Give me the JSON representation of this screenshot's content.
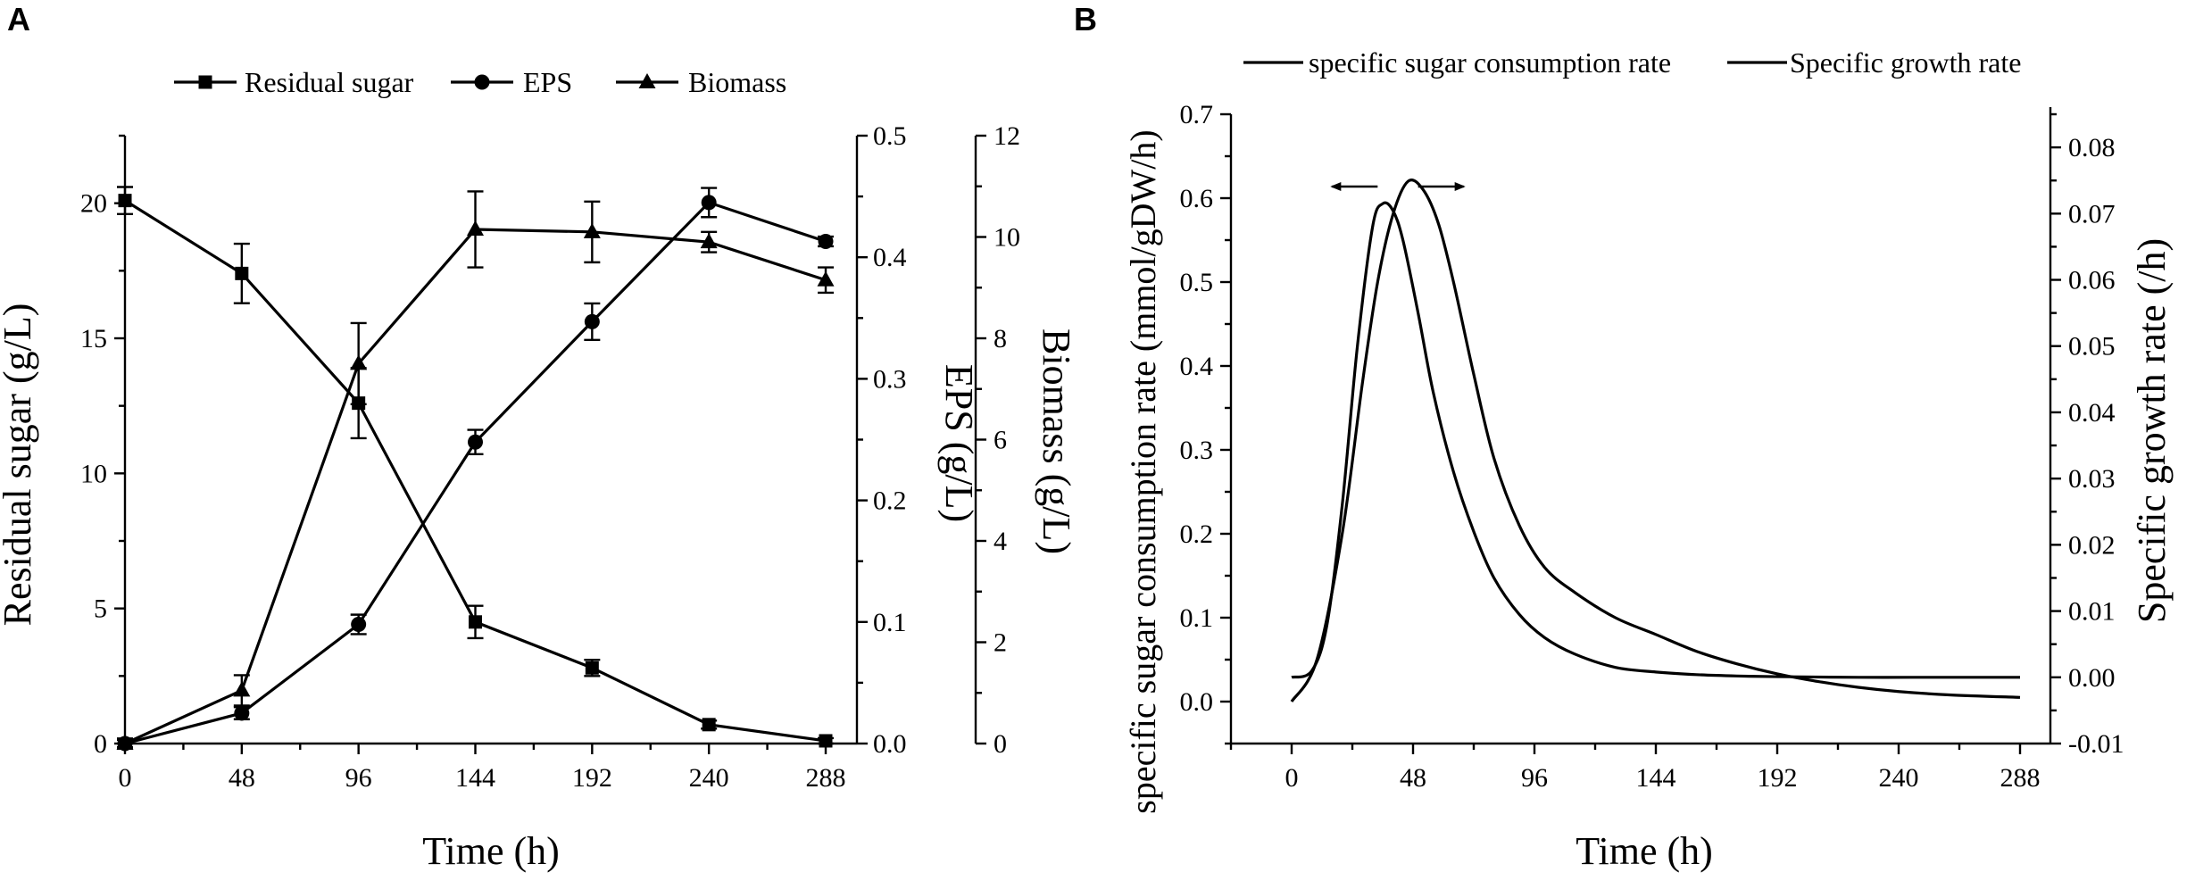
{
  "chart_data": [
    {
      "panel": "A",
      "type": "line",
      "x": [
        0,
        48,
        96,
        144,
        192,
        240,
        288
      ],
      "xlabel": "Time (h)",
      "xticks": [
        0,
        48,
        96,
        144,
        192,
        240,
        288
      ],
      "xlim": [
        0,
        288
      ],
      "axes": {
        "left": {
          "label": "Residual sugar (g/L)",
          "ylim": [
            0,
            22.5
          ],
          "ticks": [
            0,
            5,
            10,
            15,
            20
          ],
          "minor": [
            2.5,
            7.5,
            12.5,
            17.5,
            22.5
          ]
        },
        "right1": {
          "label": "EPS (g/L)",
          "ylim": [
            0,
            0.5
          ],
          "ticks": [
            0.0,
            0.1,
            0.2,
            0.3,
            0.4,
            0.5
          ],
          "tick_labels": [
            "0.0",
            "0.1",
            "0.2",
            "0.3",
            "0.4",
            "0.5"
          ]
        },
        "right2": {
          "label": "Biomass (g/L)",
          "ylim": [
            0,
            12
          ],
          "ticks": [
            0,
            2,
            4,
            6,
            8,
            10,
            12
          ]
        }
      },
      "series": [
        {
          "name": "Residual sugar",
          "axis": "left",
          "marker": "square",
          "values": [
            20.1,
            17.4,
            12.6,
            4.5,
            2.8,
            0.7,
            0.1
          ],
          "errors": [
            0.5,
            1.1,
            1.3,
            0.6,
            0.3,
            0.15,
            0.1
          ]
        },
        {
          "name": "EPS",
          "axis": "right1",
          "marker": "circle",
          "values": [
            0.0,
            0.025,
            0.098,
            0.248,
            0.347,
            0.445,
            0.413
          ],
          "errors": [
            0.003,
            0.005,
            0.008,
            0.01,
            0.015,
            0.012,
            0.004
          ]
        },
        {
          "name": "Biomass",
          "axis": "right2",
          "marker": "triangle",
          "values": [
            0.0,
            1.05,
            7.5,
            10.15,
            10.1,
            9.9,
            9.15
          ],
          "errors": [
            0.1,
            0.3,
            0.8,
            0.75,
            0.6,
            0.2,
            0.25
          ]
        }
      ]
    },
    {
      "panel": "B",
      "type": "line",
      "xlabel": "Time (h)",
      "xticks": [
        0,
        48,
        96,
        144,
        192,
        240,
        288
      ],
      "xlim": [
        -24,
        300
      ],
      "axes": {
        "left": {
          "label": "specific sugar consumption rate (mmol/gDW/h)",
          "ylim": [
            -0.05,
            0.7
          ],
          "ticks": [
            0.0,
            0.1,
            0.2,
            0.3,
            0.4,
            0.5,
            0.6,
            0.7
          ],
          "tick_labels": [
            "0.0",
            "0.1",
            "0.2",
            "0.3",
            "0.4",
            "0.5",
            "0.6",
            "0.7"
          ]
        },
        "right": {
          "label": "Specific growth rate (/h)",
          "ylim": [
            -0.01,
            0.085
          ],
          "ticks": [
            -0.01,
            0.0,
            0.01,
            0.02,
            0.03,
            0.04,
            0.05,
            0.06,
            0.07,
            0.08
          ],
          "tick_labels": [
            "-0.01",
            "0.00",
            "0.01",
            "0.02",
            "0.03",
            "0.04",
            "0.05",
            "0.06",
            "0.07",
            "0.08"
          ]
        }
      },
      "legend": [
        "specific sugar consumption rate",
        "Specific growth rate"
      ],
      "series": [
        {
          "name": "specific sugar consumption rate",
          "axis": "left",
          "x": [
            0,
            10,
            20,
            28,
            34,
            40,
            46,
            52,
            58,
            64,
            72,
            80,
            90,
            100,
            112,
            128,
            144,
            160,
            176,
            192,
            208,
            224,
            240,
            260,
            288
          ],
          "y": [
            0.0,
            0.05,
            0.2,
            0.38,
            0.5,
            0.58,
            0.62,
            0.61,
            0.57,
            0.5,
            0.39,
            0.29,
            0.21,
            0.16,
            0.13,
            0.1,
            0.08,
            0.06,
            0.045,
            0.033,
            0.024,
            0.017,
            0.012,
            0.008,
            0.005
          ]
        },
        {
          "name": "Specific growth rate",
          "axis": "right",
          "x": [
            0,
            8,
            14,
            20,
            26,
            32,
            36,
            40,
            44,
            50,
            56,
            64,
            72,
            80,
            90,
            100,
            112,
            128,
            144,
            160,
            176,
            192,
            224,
            256,
            288
          ],
          "y": [
            0.0,
            0.001,
            0.008,
            0.026,
            0.05,
            0.068,
            0.0715,
            0.0705,
            0.066,
            0.055,
            0.043,
            0.031,
            0.022,
            0.015,
            0.0095,
            0.006,
            0.0035,
            0.0015,
            0.0008,
            0.0004,
            0.0002,
            0.0001,
            0.0,
            0.0,
            0.0
          ]
        }
      ],
      "annotation": "peak shift arrows"
    }
  ],
  "panels": {
    "a_letter": "A",
    "b_letter": "B"
  }
}
